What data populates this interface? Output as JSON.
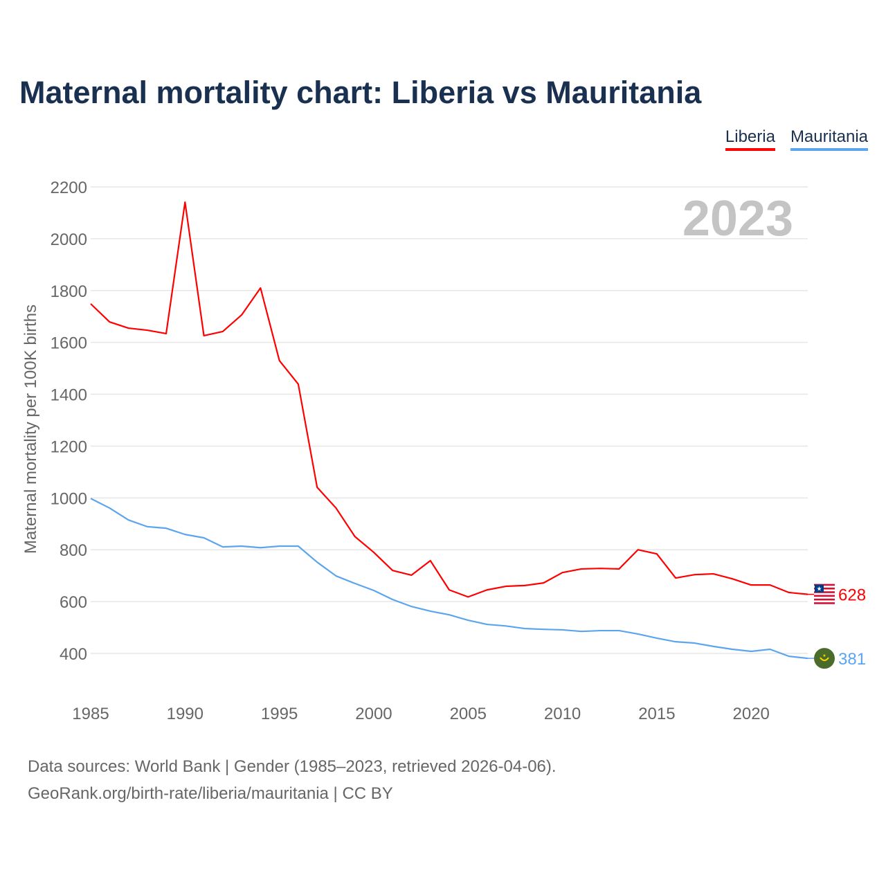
{
  "title": "Maternal mortality chart: Liberia vs Mauritania",
  "chart_data": {
    "type": "line",
    "title": "Maternal mortality chart: Liberia vs Mauritania",
    "ylabel": "Maternal mortality per 100K births",
    "xlabel": "",
    "xlim": [
      1985,
      2023
    ],
    "ylim": [
      270,
      2230
    ],
    "yticks": [
      400,
      600,
      800,
      1000,
      1200,
      1400,
      1600,
      1800,
      2000,
      2200
    ],
    "xticks": [
      1985,
      1990,
      1995,
      2000,
      2005,
      2010,
      2015,
      2020
    ],
    "grid": true,
    "legend_position": "top-right",
    "year_watermark": "2023",
    "x": [
      1985,
      1986,
      1987,
      1988,
      1989,
      1990,
      1991,
      1992,
      1993,
      1994,
      1995,
      1996,
      1997,
      1998,
      1999,
      2000,
      2001,
      2002,
      2003,
      2004,
      2005,
      2006,
      2007,
      2008,
      2009,
      2010,
      2011,
      2012,
      2013,
      2014,
      2015,
      2016,
      2017,
      2018,
      2019,
      2020,
      2021,
      2022,
      2023
    ],
    "series": [
      {
        "name": "Liberia",
        "color": "#ff0000",
        "end_label": "628",
        "values": [
          1749,
          1679,
          1655,
          1647,
          1634,
          2141,
          1626,
          1642,
          1706,
          1810,
          1530,
          1439,
          1041,
          961,
          851,
          790,
          720,
          702,
          758,
          645,
          618,
          645,
          659,
          662,
          672,
          712,
          726,
          728,
          726,
          800,
          784,
          691,
          704,
          707,
          688,
          664,
          664,
          635,
          628
        ]
      },
      {
        "name": "Mauritania",
        "color": "#5ba5ee",
        "end_label": "381",
        "values": [
          998,
          961,
          915,
          889,
          883,
          859,
          846,
          811,
          814,
          808,
          814,
          814,
          752,
          699,
          670,
          643,
          608,
          581,
          563,
          549,
          528,
          512,
          506,
          496,
          493,
          491,
          485,
          488,
          488,
          475,
          459,
          445,
          440,
          427,
          416,
          408,
          416,
          389,
          381
        ]
      }
    ]
  },
  "footer": {
    "line1": "Data sources: World Bank | Gender (1985–2023, retrieved 2026-04-06).",
    "line2": "GeoRank.org/birth-rate/liberia/mauritania | CC BY"
  }
}
